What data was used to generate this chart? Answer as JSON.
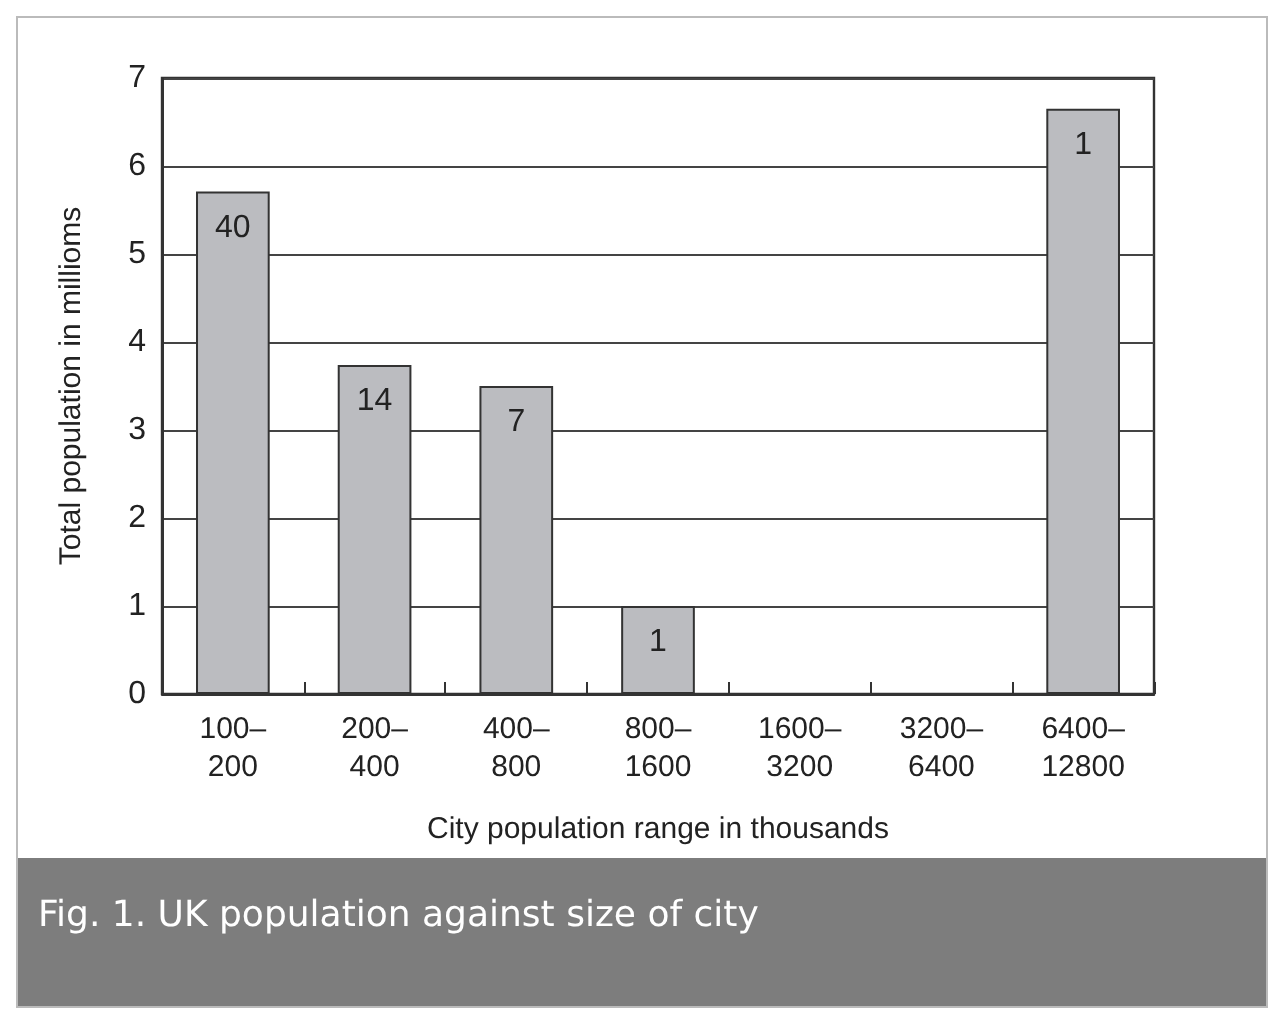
{
  "chart_data": {
    "type": "bar",
    "title": "Fig. 1. UK population against size of city",
    "xlabel": "City population range in thousands",
    "ylabel": "Total population in millioms",
    "categories": [
      "100–\n200",
      "200–\n400",
      "400–\n800",
      "800–\n1600",
      "1600–\n3200",
      "3200–\n6400",
      "6400–\n12800"
    ],
    "values": [
      5.71,
      3.74,
      3.5,
      1.0,
      0,
      0,
      6.65
    ],
    "annotations": [
      {
        "text": "40",
        "x": "100–\n200",
        "y": 5.71
      },
      {
        "text": "14",
        "x": "200–\n400",
        "y": 3.74
      },
      {
        "text": "7",
        "x": "400–\n800",
        "y": 3.5
      },
      {
        "text": "1",
        "x": "800–\n1600",
        "y": 1.0
      },
      {
        "text": "1",
        "x": "6400–\n12800",
        "y": 6.65
      }
    ],
    "color": "#bbbcc0",
    "ylim": [
      0,
      7
    ],
    "yticks": [
      0,
      1,
      2,
      3,
      4,
      5,
      6,
      7
    ],
    "grid": "y"
  }
}
